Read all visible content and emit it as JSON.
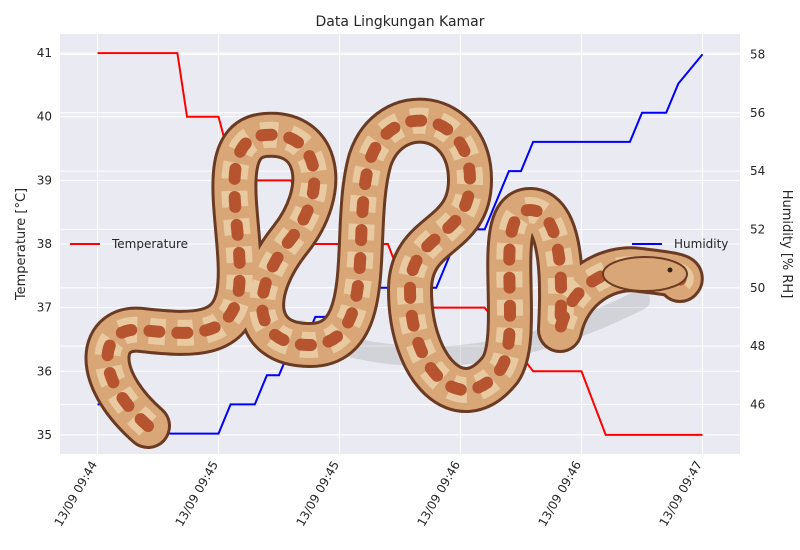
{
  "chart_data": {
    "type": "line",
    "title": "Data Lingkungan Kamar",
    "x_tick_labels": [
      "13/09 09:44",
      "13/09 09:45",
      "13/09 09:45",
      "13/09 09:46",
      "13/09 09:46",
      "13/09 09:47"
    ],
    "y_left": {
      "label": "Temperature [°C]",
      "ticks": [
        35,
        36,
        37,
        38,
        39,
        40,
        41
      ],
      "range": [
        34.7,
        41.3
      ]
    },
    "y_right": {
      "label": "Humidity [% RH]",
      "ticks": [
        46,
        48,
        50,
        52,
        54,
        56,
        58
      ],
      "range": [
        44.3,
        58.7
      ]
    },
    "x_range": [
      -1.55,
      26.55
    ],
    "grid": true,
    "series": [
      {
        "name": "Temperature",
        "axis": "left",
        "color": "#ff0000",
        "x": [
          0,
          3.3,
          3.7,
          5,
          5.7,
          8,
          9,
          12,
          13,
          16,
          17,
          18,
          20,
          21,
          25
        ],
        "y": [
          41,
          41,
          40,
          40,
          39,
          39,
          38,
          38,
          37,
          37,
          36.5,
          36,
          36,
          35,
          35
        ]
      },
      {
        "name": "Humidity",
        "axis": "right",
        "color": "#0000ff",
        "x": [
          0,
          1,
          1.5,
          5,
          5.5,
          6.5,
          7,
          7.5,
          8,
          8.5,
          9,
          9.5,
          10,
          14,
          15,
          16,
          17,
          17.5,
          18,
          18.5,
          22,
          22.5,
          23.5,
          24,
          25
        ],
        "y": [
          46,
          46,
          45,
          45,
          46,
          46,
          47,
          47,
          48,
          48,
          49,
          49,
          50,
          50,
          52,
          52,
          54,
          54,
          55,
          55,
          55,
          56,
          56,
          57,
          58
        ]
      }
    ],
    "legends": [
      {
        "series": "Temperature",
        "placement": "center-left"
      },
      {
        "series": "Humidity",
        "placement": "center-right"
      }
    ]
  },
  "overlay": {
    "subject": "snake-image",
    "colors": {
      "body": "#d9a678",
      "blotch": "#b5542e",
      "saddle": "#e8c9a0",
      "outline": "#6b3a22"
    }
  },
  "style": {
    "plot_bg": "#eaeaf2",
    "grid_color": "#ffffff",
    "text_color": "#262626"
  }
}
